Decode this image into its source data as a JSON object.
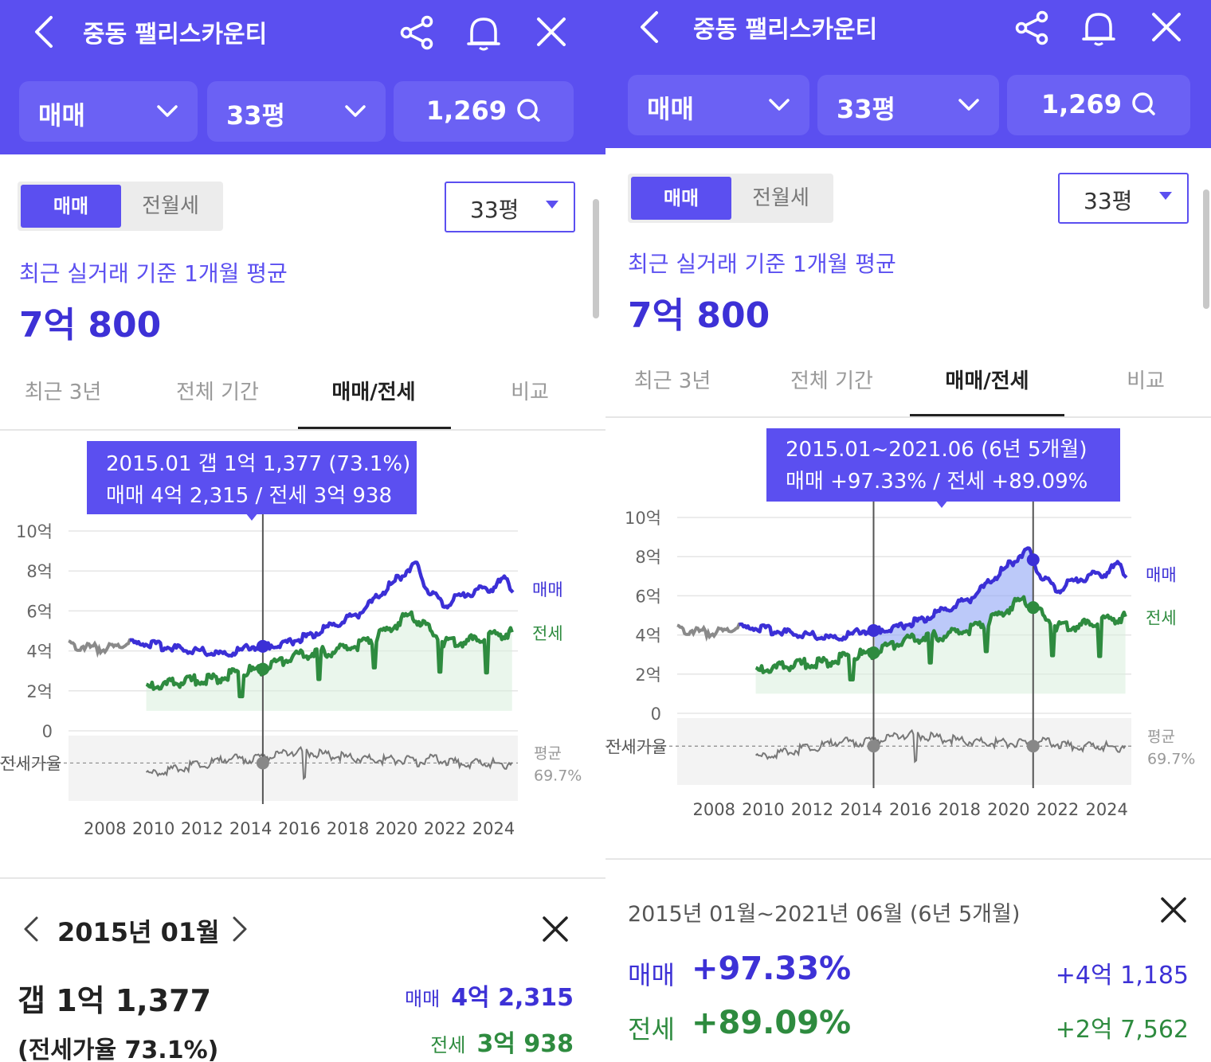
{
  "header": {
    "title": "중동 팰리스카운티"
  },
  "filters": {
    "trade": "매매",
    "size": "33평",
    "count": "1,269"
  },
  "segment": {
    "sale": "매매",
    "rent": "전월세"
  },
  "size_dropdown": "33평",
  "summary": {
    "subtitle": "최근 실거래 기준 1개월 평균",
    "price": "7억 800"
  },
  "tabs": [
    "최근 3년",
    "전체 기간",
    "매매/전세",
    "비교"
  ],
  "chart_data": {
    "type": "line",
    "y_ticks": [
      "10억",
      "8억",
      "6억",
      "4억",
      "2억",
      "0"
    ],
    "ylim": [
      0,
      10
    ],
    "y_unit": "억",
    "x_ticks": [
      "2008",
      "2010",
      "2012",
      "2014",
      "2016",
      "2018",
      "2020",
      "2022",
      "2024"
    ],
    "series": [
      {
        "name": "매매",
        "color": "#3b2fd6",
        "points": [
          [
            2007.0,
            4.3
          ],
          [
            2008.5,
            4.1
          ],
          [
            2009.5,
            4.4
          ],
          [
            2010.5,
            4.3
          ],
          [
            2011.5,
            4.1
          ],
          [
            2012.5,
            4.0
          ],
          [
            2013.5,
            3.8
          ],
          [
            2014.5,
            4.2
          ],
          [
            2015.0,
            4.23
          ],
          [
            2016.0,
            4.4
          ],
          [
            2017.0,
            4.8
          ],
          [
            2018.0,
            5.3
          ],
          [
            2019.0,
            5.9
          ],
          [
            2020.0,
            7.0
          ],
          [
            2020.8,
            7.9
          ],
          [
            2021.3,
            8.4
          ],
          [
            2021.8,
            7.0
          ],
          [
            2022.5,
            6.3
          ],
          [
            2023.0,
            6.7
          ],
          [
            2023.8,
            7.0
          ],
          [
            2024.5,
            7.2
          ],
          [
            2025.0,
            7.6
          ],
          [
            2025.3,
            7.1
          ]
        ]
      },
      {
        "name": "전세",
        "color": "#2e8b3f",
        "points": [
          [
            2010.2,
            2.1
          ],
          [
            2011.0,
            2.3
          ],
          [
            2012.0,
            2.5
          ],
          [
            2013.0,
            2.6
          ],
          [
            2014.0,
            2.9
          ],
          [
            2015.0,
            3.09
          ],
          [
            2016.0,
            3.6
          ],
          [
            2017.0,
            3.9
          ],
          [
            2018.0,
            4.0
          ],
          [
            2019.0,
            4.3
          ],
          [
            2020.0,
            4.9
          ],
          [
            2021.0,
            5.8
          ],
          [
            2021.5,
            5.4
          ],
          [
            2022.5,
            4.4
          ],
          [
            2023.5,
            4.5
          ],
          [
            2024.5,
            4.8
          ],
          [
            2025.3,
            4.9
          ]
        ]
      }
    ],
    "ratio_label": "전세가율",
    "ratio_avg_label": "평균",
    "ratio_avg_value": "69.7%",
    "legend": "right"
  },
  "panel1": {
    "tooltip_line1": "2015.01  갭 1억 1,377 (73.1%)",
    "tooltip_line2": "매매 4억 2,315 / 전세 3억 938",
    "detail_date": "2015년 01월",
    "gap": "갭 1억 1,377",
    "gap_ratio": "(전세가율 73.1%)",
    "sale_label": "매매",
    "sale_value": "4억 2,315",
    "rent_label": "전세",
    "rent_value": "3억 938"
  },
  "panel2": {
    "tooltip_line1": "2015.01~2021.06 (6년 5개월)",
    "tooltip_line2": "매매 +97.33%  /  전세 +89.09%",
    "range_title": "2015년 01월~2021년 06월 (6년 5개월)",
    "sale_label": "매매",
    "sale_pct": "+97.33%",
    "sale_diff": "+4억 1,185",
    "rent_label": "전세",
    "rent_pct": "+89.09%",
    "rent_diff": "+2억 7,562"
  }
}
